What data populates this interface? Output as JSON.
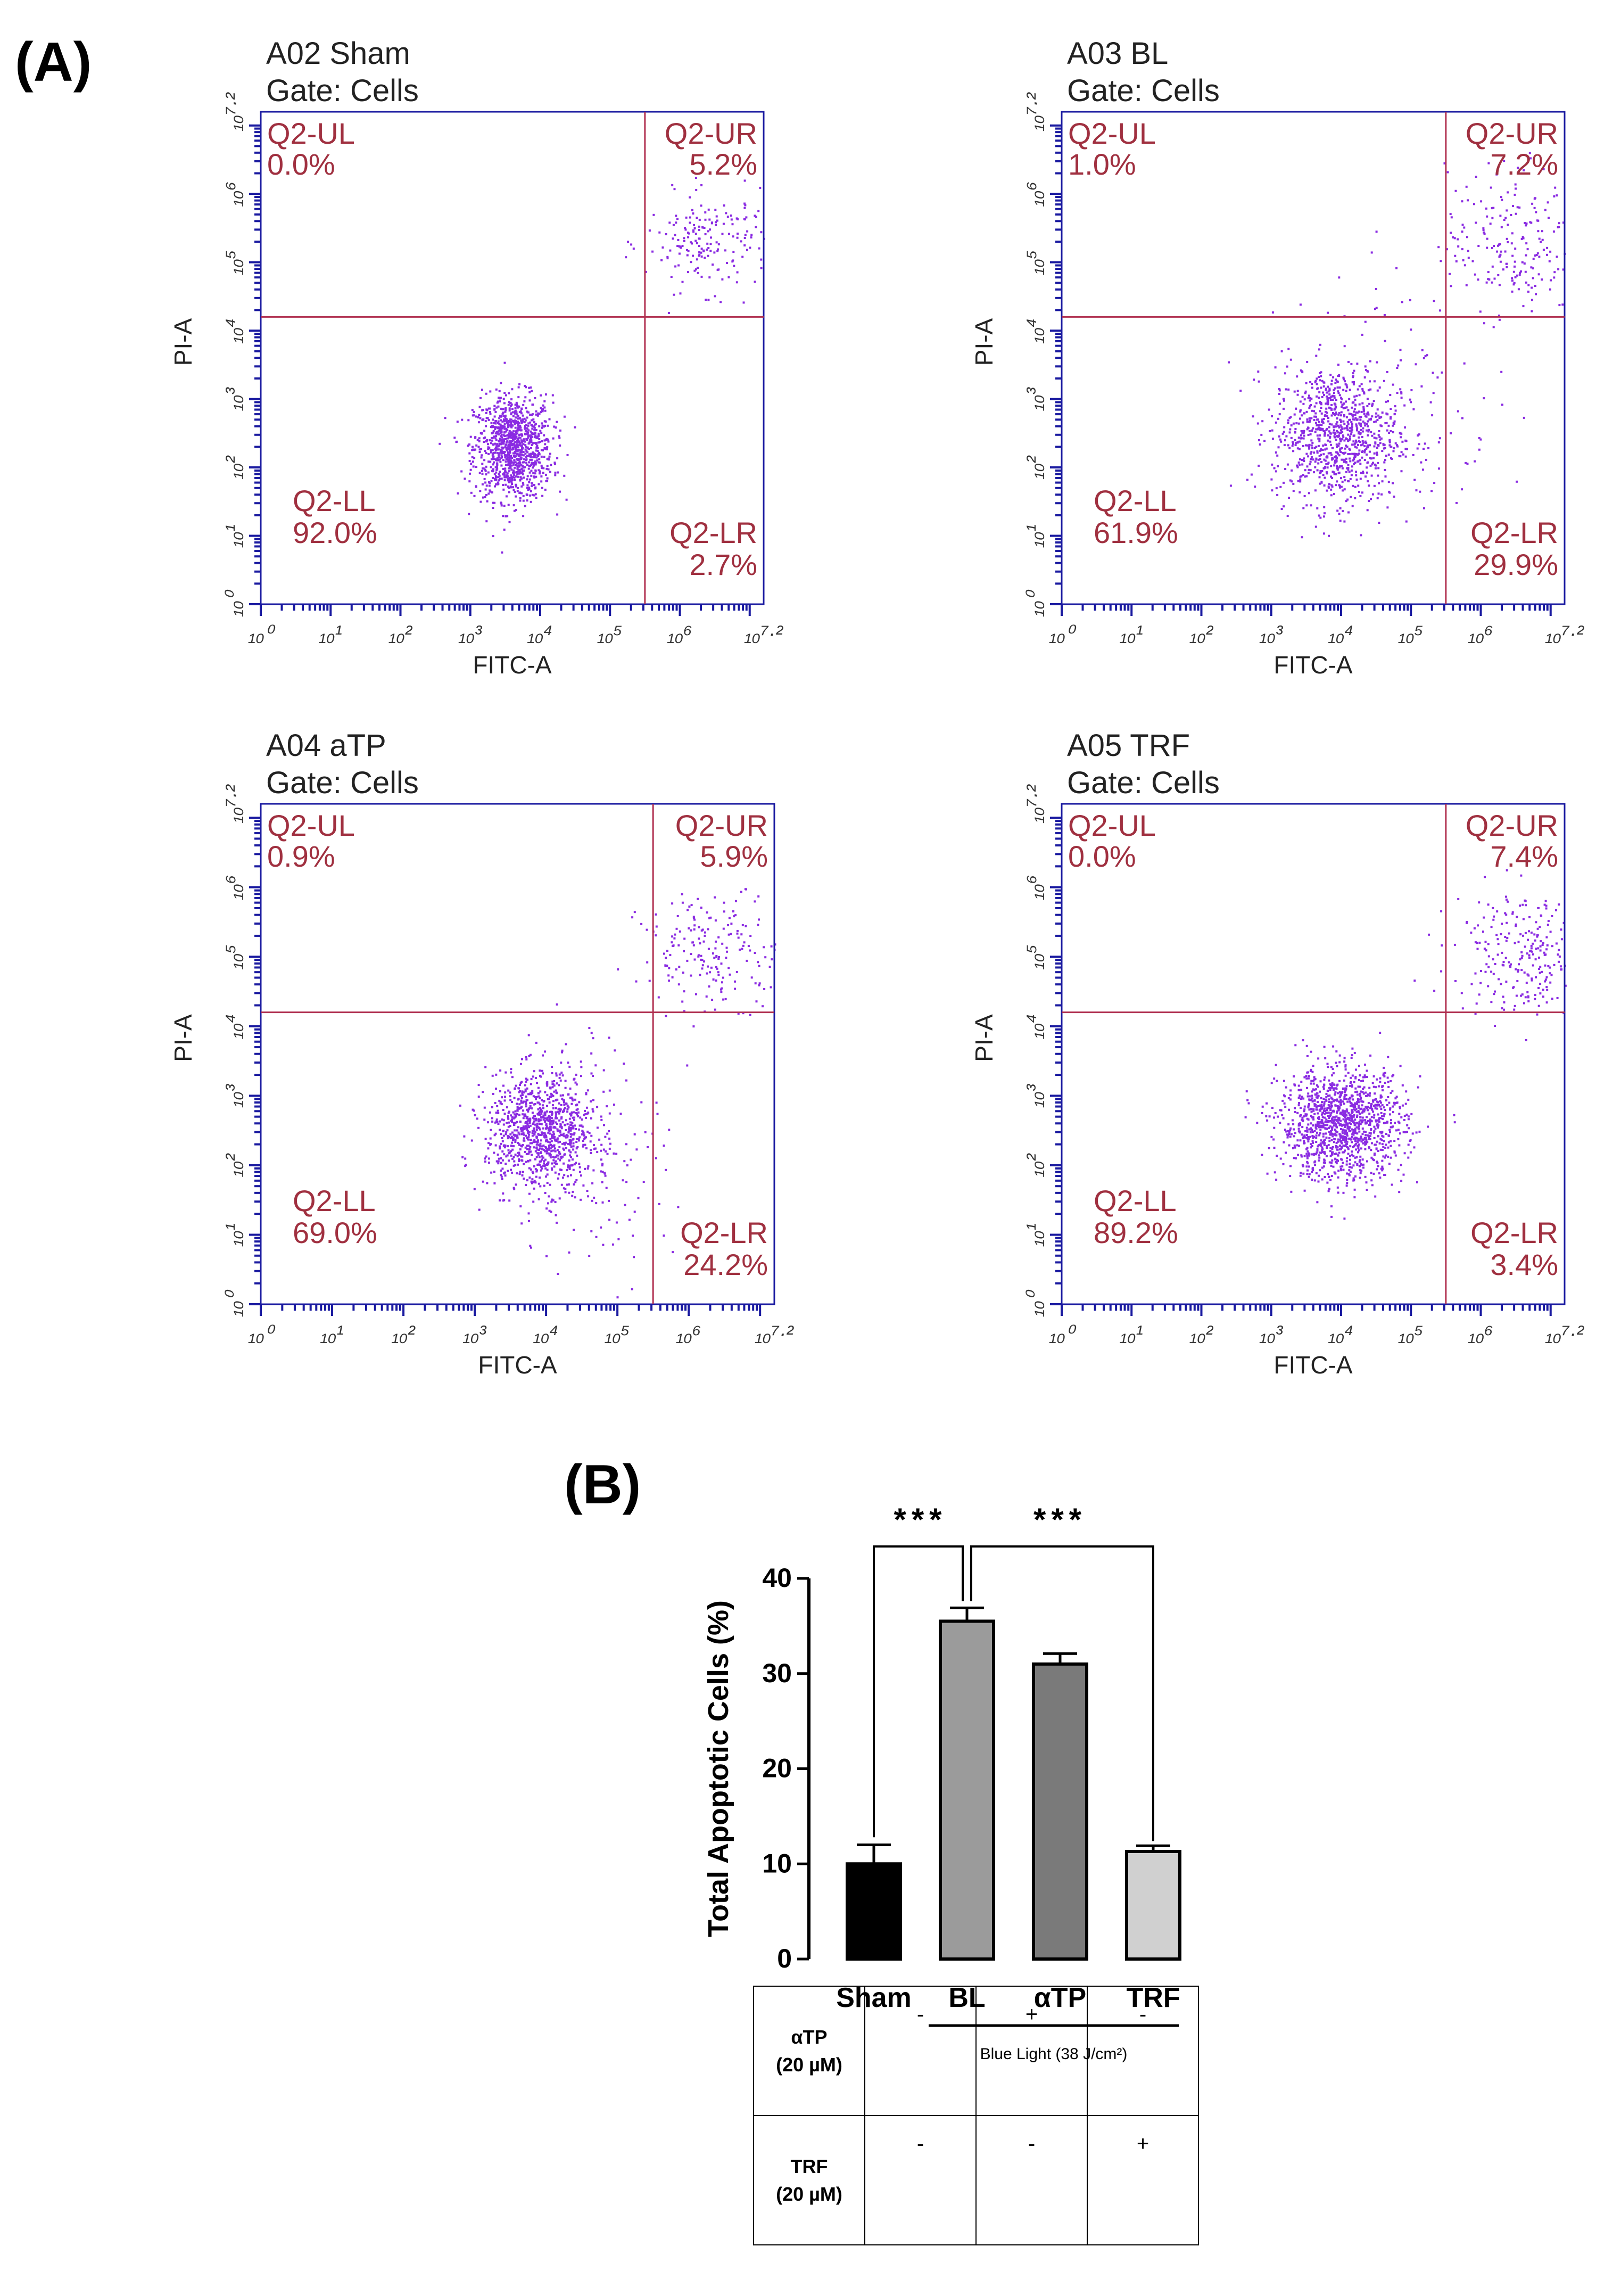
{
  "figure": {
    "panel_a_label": "(A)",
    "panel_b_label": "(B)"
  },
  "chart_data": [
    {
      "type": "scatter",
      "title": "A02 Sham",
      "subtitle": "Gate: Cells",
      "xlabel": "FITC-A",
      "ylabel": "PI-A",
      "scale": "log10",
      "xlim": [
        0,
        7.2
      ],
      "ylim": [
        0,
        7.2
      ],
      "tick_labels": [
        "10^0",
        "10^1",
        "10^2",
        "10^3",
        "10^4",
        "10^5",
        "10^6",
        "10^7.2"
      ],
      "gate": {
        "x": 5.5,
        "y": 4.2
      },
      "quadrants": {
        "UL": {
          "name": "Q2-UL",
          "pct": "0.0%"
        },
        "UR": {
          "name": "Q2-UR",
          "pct": "5.2%"
        },
        "LL": {
          "name": "Q2-LL",
          "pct": "92.0%"
        },
        "LR": {
          "name": "Q2-LR",
          "pct": "2.7%"
        }
      },
      "clusters": [
        {
          "cx": 3.6,
          "cy": 2.3,
          "sx": 0.28,
          "sy": 0.38,
          "n": 1100
        },
        {
          "cx": 6.4,
          "cy": 5.3,
          "sx": 0.45,
          "sy": 0.35,
          "n": 190
        }
      ]
    },
    {
      "type": "scatter",
      "title": "A03 BL",
      "subtitle": "Gate: Cells",
      "xlabel": "FITC-A",
      "ylabel": "PI-A",
      "scale": "log10",
      "xlim": [
        0,
        7.2
      ],
      "ylim": [
        0,
        7.2
      ],
      "tick_labels": [
        "10^0",
        "10^1",
        "10^2",
        "10^3",
        "10^4",
        "10^5",
        "10^6",
        "10^7.2"
      ],
      "gate": {
        "x": 5.5,
        "y": 4.2
      },
      "quadrants": {
        "UL": {
          "name": "Q2-UL",
          "pct": "1.0%"
        },
        "UR": {
          "name": "Q2-UR",
          "pct": "7.2%"
        },
        "LL": {
          "name": "Q2-LL",
          "pct": "61.9%"
        },
        "LR": {
          "name": "Q2-LR",
          "pct": "29.9%"
        }
      },
      "clusters": [
        {
          "cx": 3.9,
          "cy": 2.5,
          "sx": 0.45,
          "sy": 0.5,
          "n": 950
        },
        {
          "cx": 6.4,
          "cy": 5.3,
          "sx": 0.45,
          "sy": 0.55,
          "n": 200
        },
        {
          "cx": 4.8,
          "cy": 3.0,
          "sx": 0.7,
          "sy": 1.0,
          "n": 120
        }
      ]
    },
    {
      "type": "scatter",
      "title": "A04 aTP",
      "subtitle": "Gate: Cells",
      "xlabel": "FITC-A",
      "ylabel": "PI-A",
      "scale": "log10",
      "xlim": [
        0,
        7.2
      ],
      "ylim": [
        0,
        7.2
      ],
      "tick_labels": [
        "10^0",
        "10^1",
        "10^2",
        "10^3",
        "10^4",
        "10^5",
        "10^6",
        "10^7.2"
      ],
      "gate": {
        "x": 5.5,
        "y": 4.2
      },
      "quadrants": {
        "UL": {
          "name": "Q2-UL",
          "pct": "0.9%"
        },
        "UR": {
          "name": "Q2-UR",
          "pct": "5.9%"
        },
        "LL": {
          "name": "Q2-LL",
          "pct": "69.0%"
        },
        "LR": {
          "name": "Q2-LR",
          "pct": "24.2%"
        }
      },
      "clusters": [
        {
          "cx": 3.9,
          "cy": 2.5,
          "sx": 0.38,
          "sy": 0.42,
          "n": 1000
        },
        {
          "cx": 6.4,
          "cy": 5.1,
          "sx": 0.55,
          "sy": 0.4,
          "n": 200
        },
        {
          "cx": 4.6,
          "cy": 2.2,
          "sx": 0.55,
          "sy": 0.9,
          "n": 150
        }
      ]
    },
    {
      "type": "scatter",
      "title": "A05 TRF",
      "subtitle": "Gate: Cells",
      "xlabel": "FITC-A",
      "ylabel": "PI-A",
      "scale": "log10",
      "xlim": [
        0,
        7.2
      ],
      "ylim": [
        0,
        7.2
      ],
      "tick_labels": [
        "10^0",
        "10^1",
        "10^2",
        "10^3",
        "10^4",
        "10^5",
        "10^6",
        "10^7.2"
      ],
      "gate": {
        "x": 5.5,
        "y": 4.2
      },
      "quadrants": {
        "UL": {
          "name": "Q2-UL",
          "pct": "0.0%"
        },
        "UR": {
          "name": "Q2-UR",
          "pct": "7.4%"
        },
        "LL": {
          "name": "Q2-LL",
          "pct": "89.2%"
        },
        "LR": {
          "name": "Q2-LR",
          "pct": "3.4%"
        }
      },
      "clusters": [
        {
          "cx": 4.0,
          "cy": 2.6,
          "sx": 0.45,
          "sy": 0.4,
          "n": 1300
        },
        {
          "cx": 6.6,
          "cy": 5.1,
          "sx": 0.5,
          "sy": 0.45,
          "n": 260
        }
      ]
    },
    {
      "type": "bar",
      "categories": [
        "Sham",
        "BL",
        "αTP",
        "TRF"
      ],
      "values": [
        10,
        35.5,
        31,
        11.3
      ],
      "errors": [
        2,
        1.4,
        1.1,
        0.6
      ],
      "colors": [
        "#000000",
        "#9b9b9b",
        "#7a7a7a",
        "#d0d0d0"
      ],
      "ylabel": "Total Apoptotic Cells (%)",
      "ylim": [
        0,
        40
      ],
      "yticks": [
        0,
        10,
        20,
        30,
        40
      ],
      "group_label": "Blue Light (38 J/cm²)",
      "significance": [
        {
          "from": "Sham",
          "to": "BL",
          "label": "***"
        },
        {
          "from": "BL",
          "to": "TRF",
          "label": "***"
        }
      ]
    }
  ],
  "treatment_table": {
    "rows": [
      {
        "label_line1": "αTP",
        "label_line2": "(20 µM)",
        "values": [
          "-",
          "+",
          "-"
        ]
      },
      {
        "label_line1": "TRF",
        "label_line2": "(20 µM)",
        "values": [
          "-",
          "-",
          "+"
        ]
      }
    ]
  },
  "colors": {
    "dots": "#8a2be2",
    "gate": "#b03050",
    "axis": "#1a1aa0",
    "quadrant_text": "#a03040"
  }
}
